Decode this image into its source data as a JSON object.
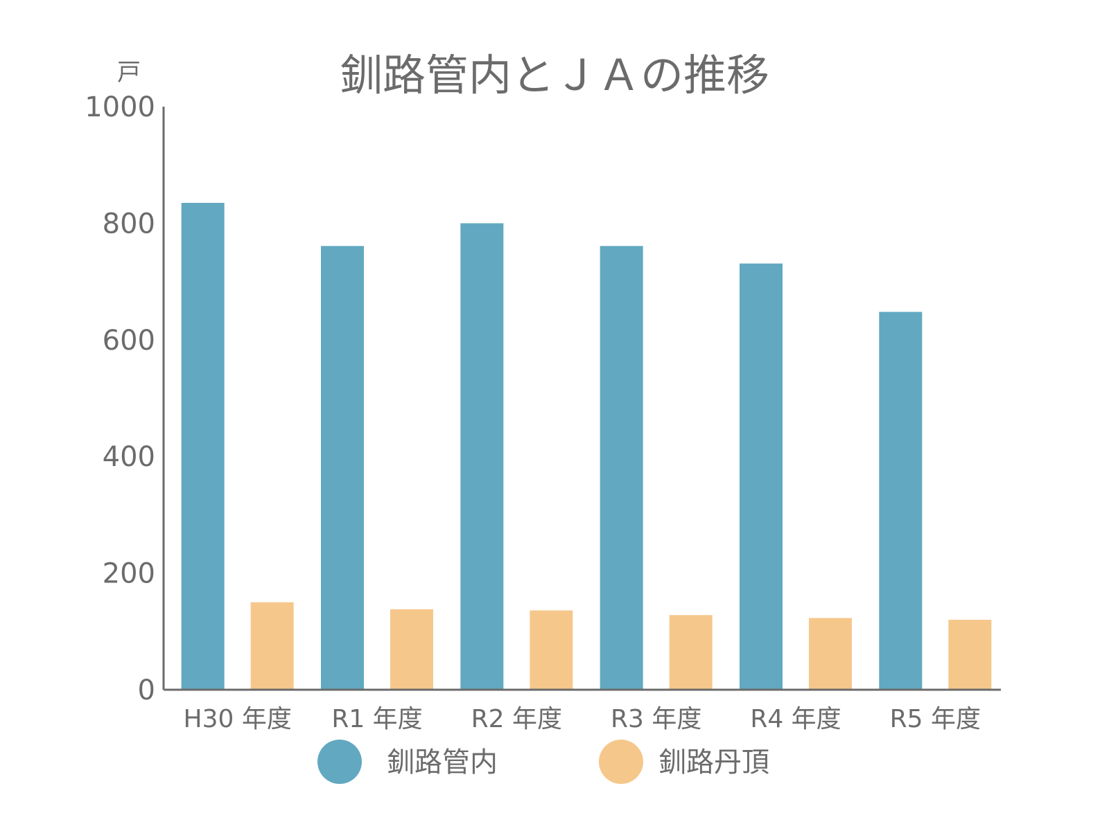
{
  "chart_data": {
    "type": "bar",
    "title": "釧路管内とＪＡの推移",
    "ylabel": "戸",
    "xlabel": "",
    "ylim": [
      0,
      1000
    ],
    "yticks": [
      0,
      200,
      400,
      600,
      800,
      1000
    ],
    "categories": [
      "H30 年度",
      "R1 年度",
      "R2 年度",
      "R3 年度",
      "R4 年度",
      "R5 年度"
    ],
    "series": [
      {
        "name": "釧路管内",
        "color": "#62a8c1",
        "values": [
          835,
          761,
          800,
          761,
          731,
          648
        ]
      },
      {
        "name": "釧路丹頂",
        "color": "#f6c78b",
        "values": [
          150,
          138,
          136,
          128,
          123,
          120
        ]
      }
    ],
    "legend": "bottom",
    "grid": false
  },
  "colors": {
    "axis": "#6b6b6b",
    "text": "#6b6b6b"
  }
}
